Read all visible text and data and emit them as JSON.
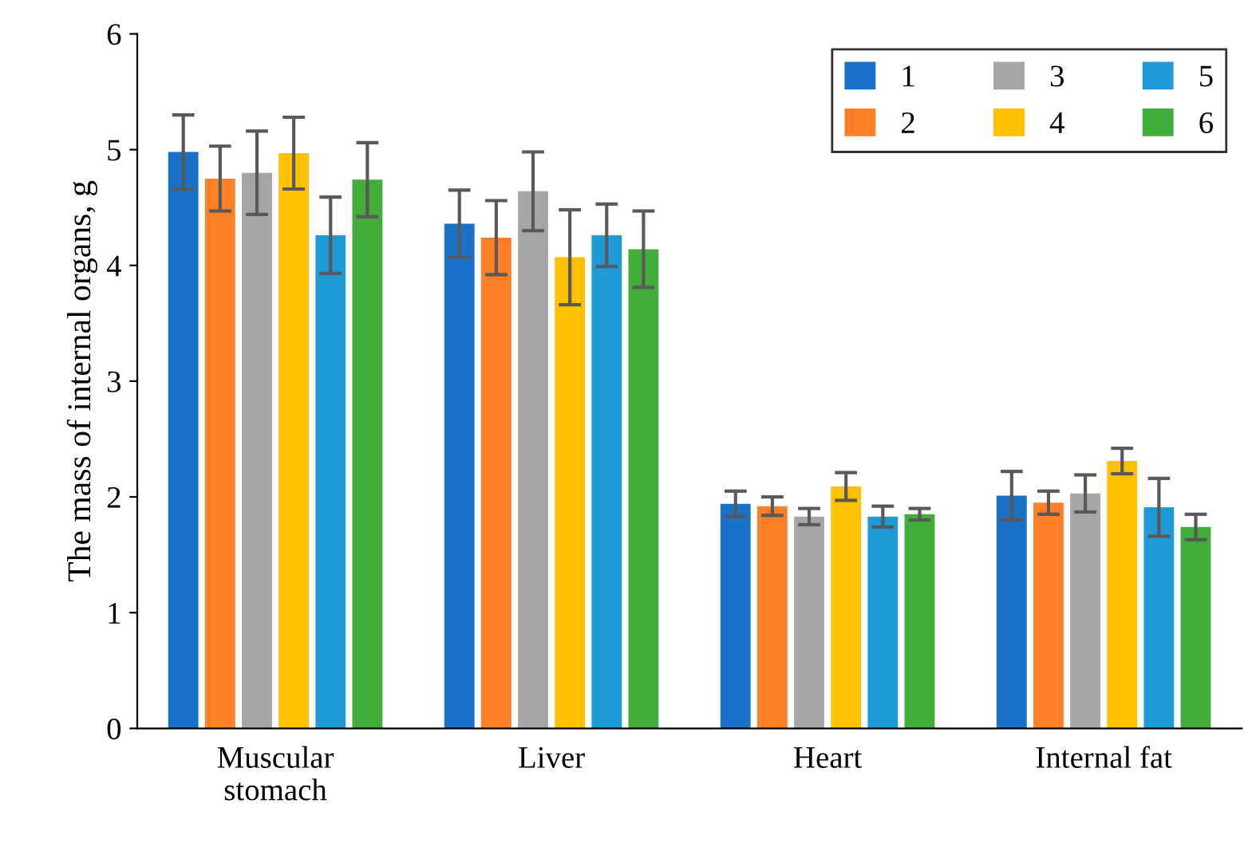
{
  "chart_data": {
    "type": "bar",
    "ylabel": "The mass of internal organs, g",
    "categories": [
      "Muscular\nstomach",
      "Liver",
      "Heart",
      "Internal fat"
    ],
    "series": [
      {
        "name": "1",
        "color": "#1a72c8",
        "values": [
          4.98,
          4.36,
          1.94,
          2.01
        ],
        "errors": [
          0.32,
          0.29,
          0.11,
          0.21
        ]
      },
      {
        "name": "2",
        "color": "#ff7f27",
        "values": [
          4.75,
          4.24,
          1.92,
          1.95
        ],
        "errors": [
          0.28,
          0.32,
          0.08,
          0.1
        ]
      },
      {
        "name": "3",
        "color": "#a6a6a6",
        "values": [
          4.8,
          4.64,
          1.83,
          2.03
        ],
        "errors": [
          0.36,
          0.34,
          0.07,
          0.16
        ]
      },
      {
        "name": "4",
        "color": "#ffc000",
        "values": [
          4.97,
          4.07,
          2.09,
          2.31
        ],
        "errors": [
          0.31,
          0.41,
          0.12,
          0.11
        ]
      },
      {
        "name": "5",
        "color": "#1e9bd7",
        "values": [
          4.26,
          4.26,
          1.83,
          1.91
        ],
        "errors": [
          0.33,
          0.27,
          0.09,
          0.25
        ]
      },
      {
        "name": "6",
        "color": "#43ad3a",
        "values": [
          4.74,
          4.14,
          1.85,
          1.74
        ],
        "errors": [
          0.32,
          0.33,
          0.05,
          0.11
        ]
      }
    ],
    "ylim": [
      0,
      6
    ],
    "yticks": [
      0,
      1,
      2,
      3,
      4,
      5,
      6
    ],
    "grid": false,
    "legend": "top right"
  }
}
